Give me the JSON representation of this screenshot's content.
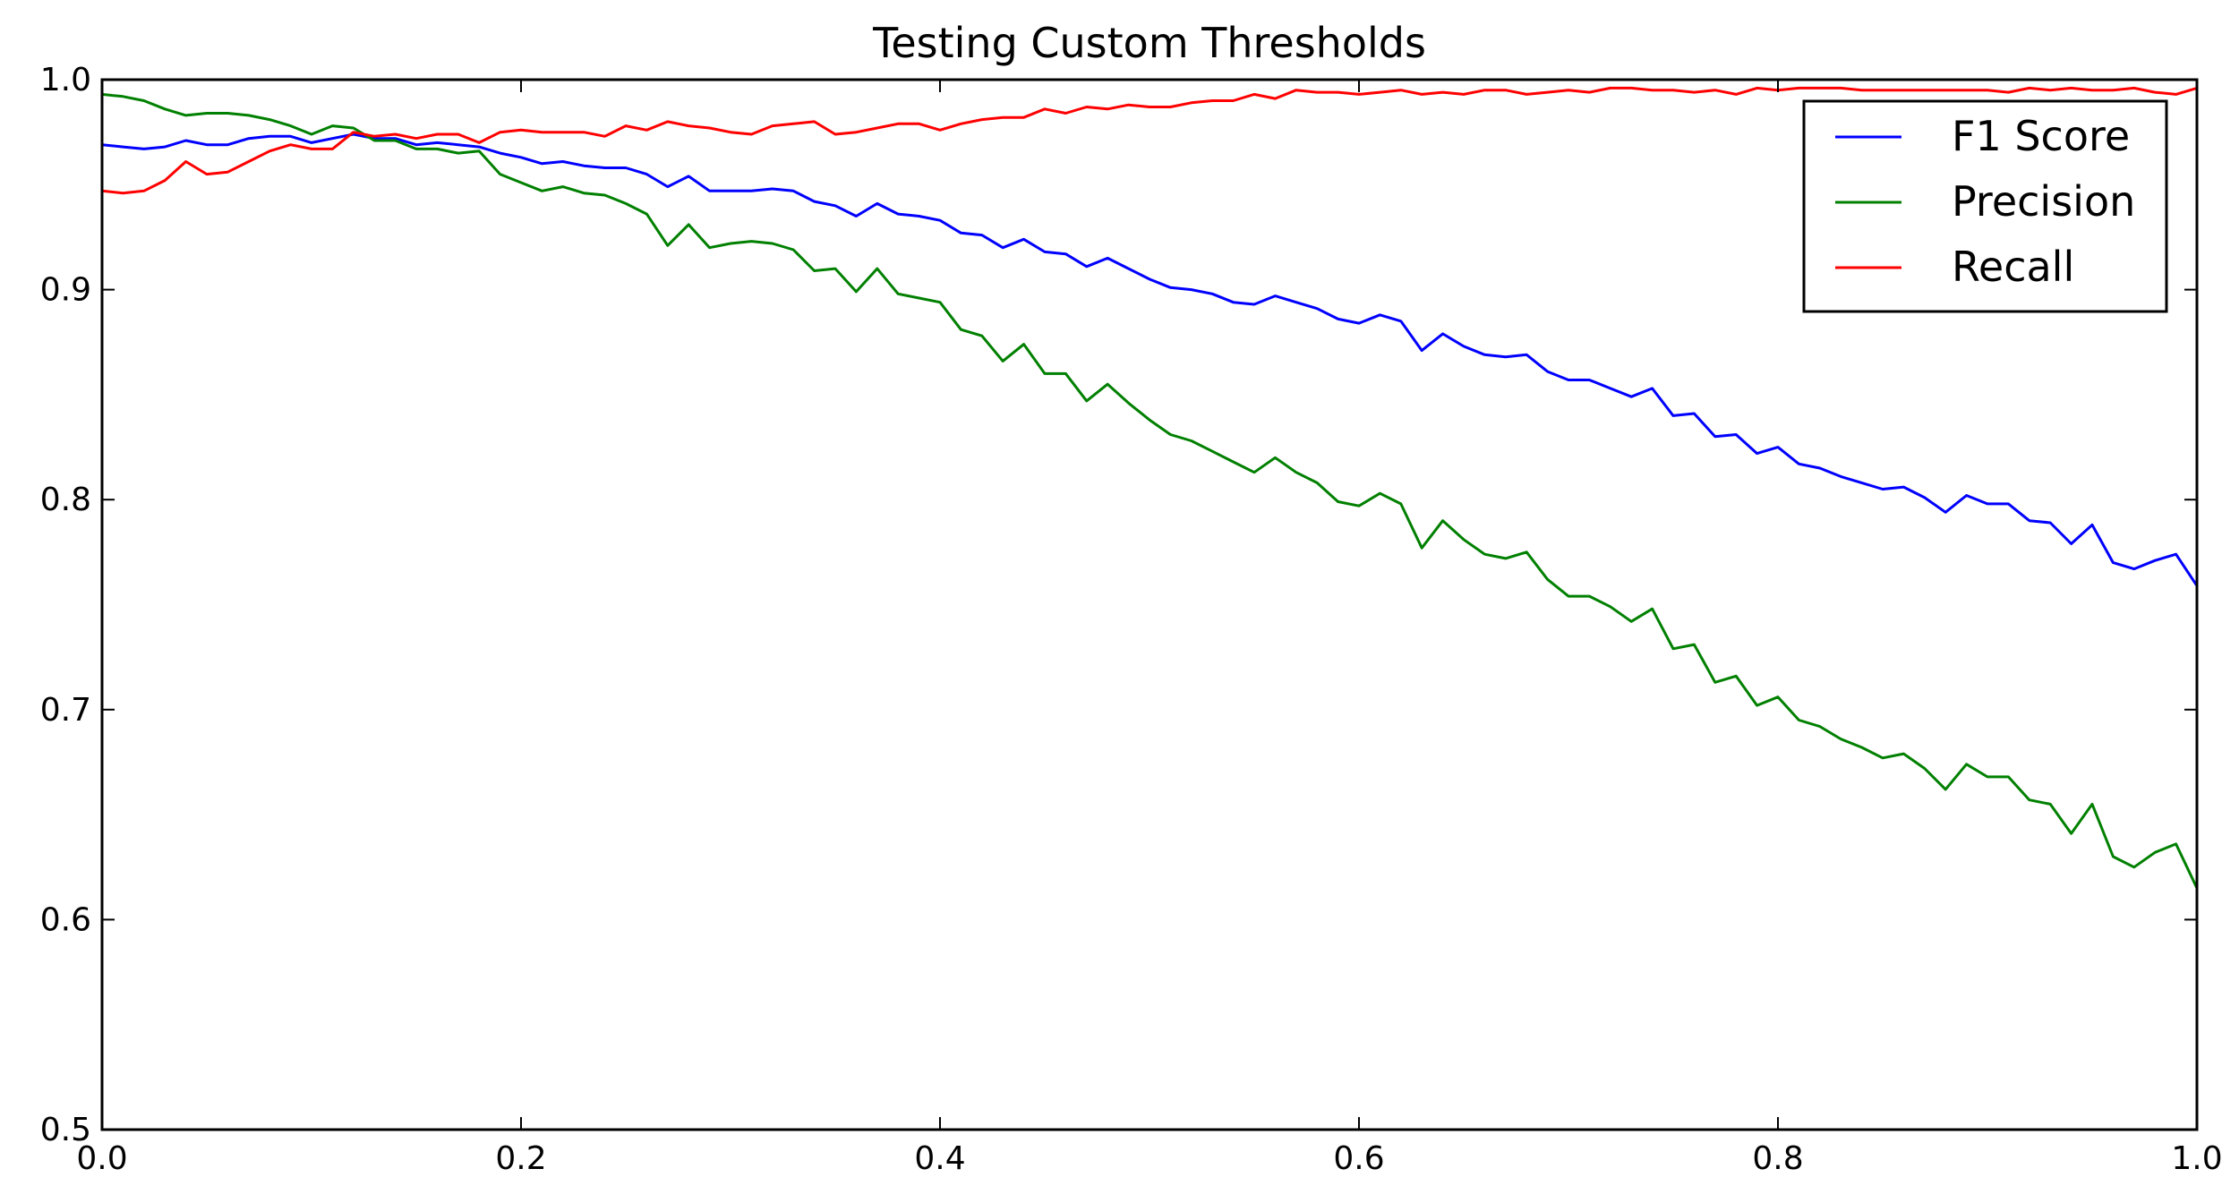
{
  "chart_data": {
    "type": "line",
    "title": "Testing Custom Thresholds",
    "xlabel": "",
    "ylabel": "",
    "xlim": [
      0.0,
      1.0
    ],
    "ylim": [
      0.5,
      1.0
    ],
    "xticks": [
      "0.0",
      "0.2",
      "0.4",
      "0.6",
      "0.8",
      "1.0"
    ],
    "yticks": [
      "0.5",
      "0.6",
      "0.7",
      "0.8",
      "0.9",
      "1.0"
    ],
    "grid": false,
    "legend_position": "top-right",
    "x": [
      0.0,
      0.01,
      0.02,
      0.03,
      0.04,
      0.05,
      0.06,
      0.07,
      0.08,
      0.09,
      0.1,
      0.11,
      0.12,
      0.13,
      0.14,
      0.15,
      0.16,
      0.17,
      0.18,
      0.19,
      0.2,
      0.21,
      0.22,
      0.23,
      0.24,
      0.25,
      0.26,
      0.27,
      0.28,
      0.29,
      0.3,
      0.31,
      0.32,
      0.33,
      0.34,
      0.35,
      0.36,
      0.37,
      0.38,
      0.39,
      0.4,
      0.41,
      0.42,
      0.43,
      0.44,
      0.45,
      0.46,
      0.47,
      0.48,
      0.49,
      0.5,
      0.51,
      0.52,
      0.53,
      0.54,
      0.55,
      0.56,
      0.57,
      0.58,
      0.59,
      0.6,
      0.61,
      0.62,
      0.63,
      0.64,
      0.65,
      0.66,
      0.67,
      0.68,
      0.69,
      0.7,
      0.71,
      0.72,
      0.73,
      0.74,
      0.75,
      0.76,
      0.77,
      0.78,
      0.79,
      0.8,
      0.81,
      0.82,
      0.83,
      0.84,
      0.85,
      0.86,
      0.87,
      0.88,
      0.89,
      0.9,
      0.91,
      0.92,
      0.93,
      0.94,
      0.95,
      0.96,
      0.97,
      0.98,
      0.99,
      1.0
    ],
    "series": [
      {
        "name": "F1 Score",
        "color": "#0000ff",
        "values": [
          0.969,
          0.968,
          0.967,
          0.968,
          0.971,
          0.969,
          0.969,
          0.972,
          0.973,
          0.973,
          0.97,
          0.972,
          0.974,
          0.972,
          0.972,
          0.969,
          0.97,
          0.969,
          0.968,
          0.965,
          0.963,
          0.96,
          0.961,
          0.959,
          0.958,
          0.958,
          0.955,
          0.949,
          0.954,
          0.947,
          0.947,
          0.947,
          0.948,
          0.947,
          0.942,
          0.94,
          0.935,
          0.941,
          0.936,
          0.935,
          0.933,
          0.927,
          0.926,
          0.92,
          0.924,
          0.918,
          0.917,
          0.911,
          0.915,
          0.91,
          0.905,
          0.901,
          0.9,
          0.898,
          0.894,
          0.893,
          0.897,
          0.894,
          0.891,
          0.886,
          0.884,
          0.888,
          0.885,
          0.871,
          0.879,
          0.873,
          0.869,
          0.868,
          0.869,
          0.861,
          0.857,
          0.857,
          0.853,
          0.849,
          0.853,
          0.84,
          0.841,
          0.83,
          0.831,
          0.822,
          0.825,
          0.817,
          0.815,
          0.811,
          0.808,
          0.805,
          0.806,
          0.801,
          0.794,
          0.802,
          0.798,
          0.798,
          0.79,
          0.789,
          0.779,
          0.788,
          0.77,
          0.767,
          0.771,
          0.774,
          0.759
        ]
      },
      {
        "name": "Precision",
        "color": "#008000",
        "values": [
          0.993,
          0.992,
          0.99,
          0.986,
          0.983,
          0.984,
          0.984,
          0.983,
          0.981,
          0.978,
          0.974,
          0.978,
          0.977,
          0.971,
          0.971,
          0.967,
          0.967,
          0.965,
          0.966,
          0.955,
          0.951,
          0.947,
          0.949,
          0.946,
          0.945,
          0.941,
          0.936,
          0.921,
          0.931,
          0.92,
          0.922,
          0.923,
          0.922,
          0.919,
          0.909,
          0.91,
          0.899,
          0.91,
          0.898,
          0.896,
          0.894,
          0.881,
          0.878,
          0.866,
          0.874,
          0.86,
          0.86,
          0.847,
          0.855,
          0.846,
          0.838,
          0.831,
          0.828,
          0.823,
          0.818,
          0.813,
          0.82,
          0.813,
          0.808,
          0.799,
          0.797,
          0.803,
          0.798,
          0.777,
          0.79,
          0.781,
          0.774,
          0.772,
          0.775,
          0.762,
          0.754,
          0.754,
          0.749,
          0.742,
          0.748,
          0.729,
          0.731,
          0.713,
          0.716,
          0.702,
          0.706,
          0.695,
          0.692,
          0.686,
          0.682,
          0.677,
          0.679,
          0.672,
          0.662,
          0.674,
          0.668,
          0.668,
          0.657,
          0.655,
          0.641,
          0.655,
          0.63,
          0.625,
          0.632,
          0.636,
          0.615
        ]
      },
      {
        "name": "Recall",
        "color": "#ff0000",
        "values": [
          0.947,
          0.946,
          0.947,
          0.952,
          0.961,
          0.955,
          0.956,
          0.961,
          0.966,
          0.969,
          0.967,
          0.967,
          0.975,
          0.973,
          0.974,
          0.972,
          0.974,
          0.974,
          0.97,
          0.975,
          0.976,
          0.975,
          0.975,
          0.975,
          0.973,
          0.978,
          0.976,
          0.98,
          0.978,
          0.977,
          0.975,
          0.974,
          0.978,
          0.979,
          0.98,
          0.974,
          0.975,
          0.977,
          0.979,
          0.979,
          0.976,
          0.979,
          0.981,
          0.982,
          0.982,
          0.986,
          0.984,
          0.987,
          0.986,
          0.988,
          0.987,
          0.987,
          0.989,
          0.99,
          0.99,
          0.993,
          0.991,
          0.995,
          0.994,
          0.994,
          0.993,
          0.994,
          0.995,
          0.993,
          0.994,
          0.993,
          0.995,
          0.995,
          0.993,
          0.994,
          0.995,
          0.994,
          0.996,
          0.996,
          0.995,
          0.995,
          0.994,
          0.995,
          0.993,
          0.996,
          0.995,
          0.996,
          0.996,
          0.996,
          0.995,
          0.995,
          0.995,
          0.995,
          0.995,
          0.995,
          0.995,
          0.994,
          0.996,
          0.995,
          0.996,
          0.995,
          0.995,
          0.996,
          0.994,
          0.993,
          0.996
        ]
      }
    ]
  }
}
